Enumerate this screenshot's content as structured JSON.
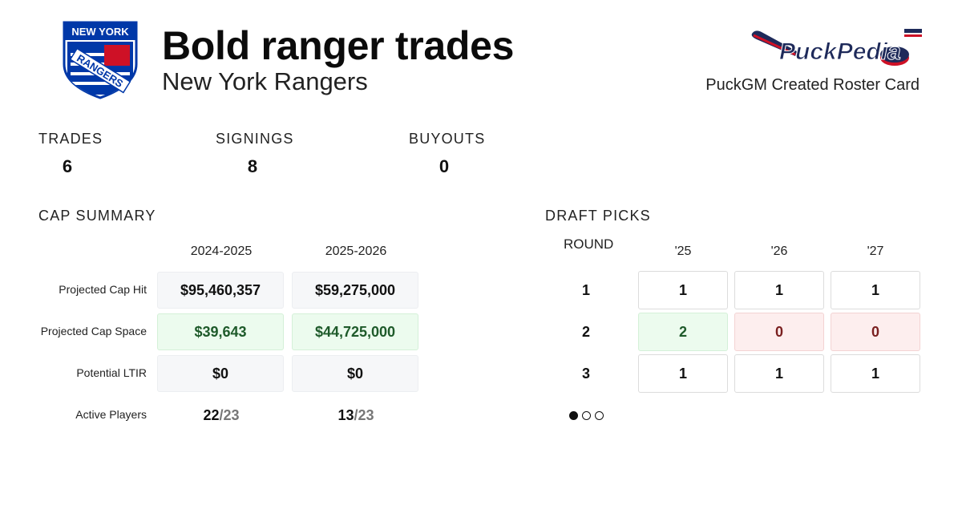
{
  "header": {
    "title": "Bold ranger trades",
    "subtitle": "New York Rangers",
    "credit": "PuckGM Created Roster Card",
    "team_logo_text": [
      "NEW YORK",
      "RANGERS"
    ],
    "brand_logo_text": "PuckPedia"
  },
  "stats": [
    {
      "label": "TRADES",
      "value": "6"
    },
    {
      "label": "SIGNINGS",
      "value": "8"
    },
    {
      "label": "BUYOUTS",
      "value": "0"
    }
  ],
  "cap_summary": {
    "title": "CAP SUMMARY",
    "seasons": [
      "2024-2025",
      "2025-2026"
    ],
    "rows": [
      {
        "label": "Projected Cap Hit",
        "values": [
          "$95,460,357",
          "$59,275,000"
        ],
        "style": "neutral"
      },
      {
        "label": "Projected Cap Space",
        "values": [
          "$39,643",
          "$44,725,000"
        ],
        "style": "positive"
      },
      {
        "label": "Potential LTIR",
        "values": [
          "$0",
          "$0"
        ],
        "style": "neutral"
      }
    ],
    "active_players": {
      "label": "Active Players",
      "values": [
        {
          "count": "22",
          "max": "/23"
        },
        {
          "count": "13",
          "max": "/23"
        }
      ]
    }
  },
  "draft_picks": {
    "title": "DRAFT PICKS",
    "round_header": "ROUND",
    "years": [
      "'25",
      "'26",
      "'27"
    ],
    "rounds": [
      {
        "round": "1",
        "picks": [
          "1",
          "1",
          "1"
        ]
      },
      {
        "round": "2",
        "picks": [
          "2",
          "0",
          "0"
        ]
      },
      {
        "round": "3",
        "picks": [
          "1",
          "1",
          "1"
        ]
      }
    ],
    "pager": {
      "total": 3,
      "active": 1
    }
  },
  "colors": {
    "positive_text": "#1e5a2a",
    "positive_bg": "#ecfbee",
    "negative_text": "#7a1f1f",
    "negative_bg": "#fdeeee",
    "rangers_blue": "#0038a8",
    "rangers_red": "#ce1126"
  }
}
